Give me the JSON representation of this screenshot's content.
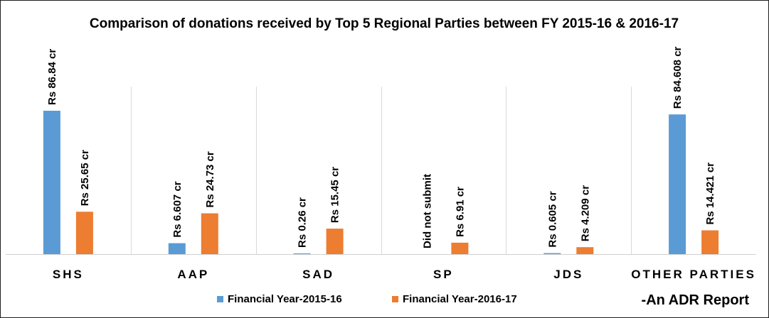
{
  "chart_data": {
    "type": "bar",
    "title": "Comparison of donations received by Top 5 Regional Parties between FY 2015-16 & 2016-17",
    "categories": [
      "SHS",
      "AAP",
      "SAD",
      "SP",
      "JDS",
      "OTHER PARTIES"
    ],
    "series": [
      {
        "name": "Financial Year-2015-16",
        "color": "#5B9BD5",
        "values": [
          86.84,
          6.607,
          0.26,
          null,
          0.605,
          84.608
        ],
        "labels": [
          "Rs 86.84 cr",
          "Rs 6.607 cr",
          "Rs 0.26 cr",
          "Did not submit",
          "Rs 0.605 cr",
          "Rs 84.608 cr"
        ]
      },
      {
        "name": "Financial Year-2016-17",
        "color": "#ED7D31",
        "values": [
          25.65,
          24.73,
          15.45,
          6.91,
          4.209,
          14.421
        ],
        "labels": [
          "Rs 25.65 cr",
          "Rs 24.73 cr",
          "Rs 15.45 cr",
          "Rs 6.91 cr",
          "Rs 4.209 cr",
          "Rs 14.421 cr"
        ]
      }
    ],
    "ylim": [
      0,
      86.84
    ],
    "grid": false,
    "category_separators": true,
    "legend_position": "bottom",
    "special_label_color": "#C00000"
  },
  "footer": "-An ADR Report"
}
